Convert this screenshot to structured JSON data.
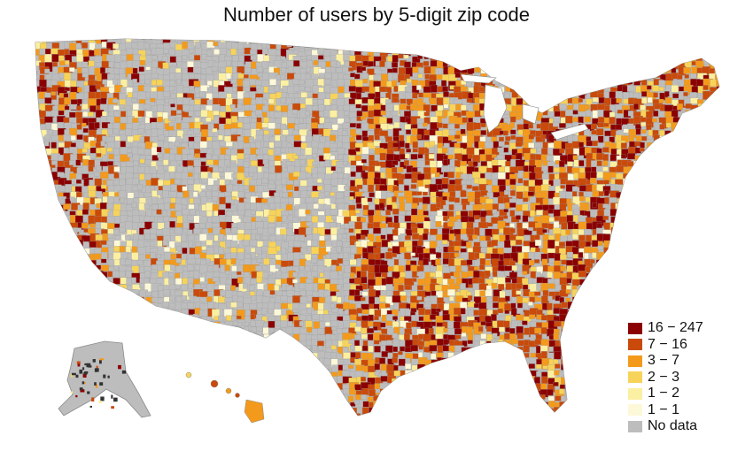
{
  "title": "Number of users by 5-digit zip code",
  "legend": [
    {
      "label": "16 − 247",
      "color": "#8b0000"
    },
    {
      "label": "7 − 16",
      "color": "#c94a0a"
    },
    {
      "label": "3 − 7",
      "color": "#f39a1c"
    },
    {
      "label": "2 − 3",
      "color": "#f7d35a"
    },
    {
      "label": "1 − 2",
      "color": "#fbefa2"
    },
    {
      "label": "1 − 1",
      "color": "#fdf8d8"
    },
    {
      "label": "No data",
      "color": "#bdbdbd"
    }
  ],
  "colors": {
    "no_data": "#bdbdbd",
    "boundary": "#8a8a8a"
  }
}
